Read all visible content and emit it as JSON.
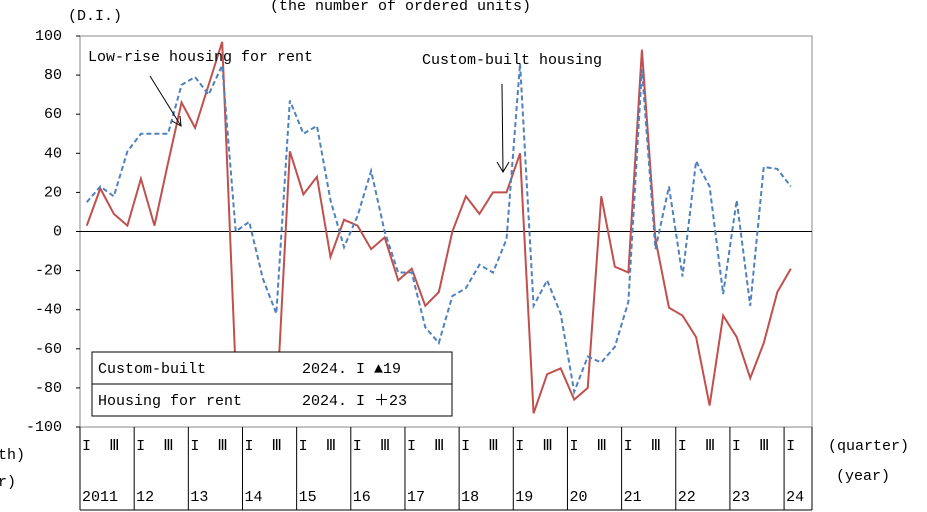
{
  "chart_data": {
    "type": "line",
    "title": "(the number of ordered units)",
    "y_label": "(D.I.)",
    "x_label_quarter": "(quarter)",
    "x_label_year": "(year)",
    "x_label_month_cut": "th)",
    "x_label_year_cut": "r)",
    "quarters": [
      "I",
      null,
      "Ⅲ",
      null,
      "I",
      null,
      "Ⅲ",
      null,
      "I",
      null,
      "Ⅲ",
      null,
      "I",
      null,
      "Ⅲ",
      null,
      "I",
      null,
      "Ⅲ",
      null,
      "I",
      null,
      "Ⅲ",
      null,
      "I",
      null,
      "Ⅲ",
      null,
      "I",
      null,
      "Ⅲ",
      null,
      "I",
      null,
      "Ⅲ",
      null,
      "I",
      null,
      "Ⅲ",
      null,
      "I",
      null,
      "Ⅲ",
      null,
      "I",
      null,
      "Ⅲ",
      null,
      "I",
      null,
      "Ⅲ",
      null,
      "I"
    ],
    "years": [
      "2011",
      "12",
      "13",
      "14",
      "15",
      "16",
      "17",
      "18",
      "19",
      "20",
      "21",
      "22",
      "23",
      "24"
    ],
    "series": [
      {
        "name": "Custom-built",
        "color": "#c0504d",
        "dash": false,
        "values": [
          3,
          22,
          9,
          3,
          27,
          3,
          35,
          66,
          53,
          75,
          97,
          -72,
          -83,
          -84,
          -91,
          41,
          19,
          28,
          -13,
          6,
          3,
          -9,
          -3,
          -25,
          -19,
          -38,
          -31,
          0,
          18,
          9,
          20,
          20,
          40,
          -93,
          -73,
          -70,
          -86,
          -80,
          18,
          -18,
          -21,
          93,
          -4,
          -39,
          -43,
          -54,
          -89,
          -43,
          -54,
          -75,
          -57,
          -31,
          -19
        ]
      },
      {
        "name": "Housing for rent",
        "color": "#4f81bd",
        "dash": true,
        "values": [
          15,
          23,
          18,
          41,
          50,
          50,
          50,
          75,
          79,
          70,
          85,
          0,
          5,
          -24,
          -42,
          67,
          50,
          54,
          16,
          -8,
          8,
          31,
          0,
          -21,
          -21,
          -49,
          -57,
          -33,
          -29,
          -17,
          -21,
          -4,
          86,
          -38,
          -25,
          -42,
          -82,
          -64,
          -67,
          -59,
          -36,
          83,
          -9,
          23,
          -23,
          36,
          23,
          -32,
          16,
          -38,
          33,
          32,
          23
        ]
      }
    ],
    "legend_values": [
      "2024. I ▲19",
      "2024. I ＋23"
    ],
    "annotations": [
      "Low-rise housing for rent",
      "Custom-built housing"
    ],
    "ylim": [
      -100,
      100
    ],
    "yticks": [
      -100,
      -80,
      -60,
      -40,
      -20,
      0,
      20,
      40,
      60,
      80,
      100
    ]
  }
}
